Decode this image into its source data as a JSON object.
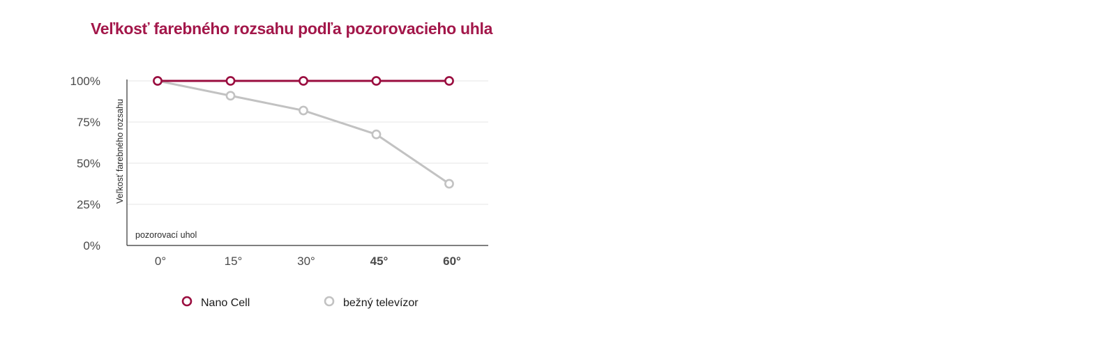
{
  "chart_data": {
    "type": "line",
    "title": "Veľkosť farebného rozsahu podľa pozorovacieho uhla",
    "ylabel": "Veľkosť farebného rozsahu",
    "xlabel": "pozorovací uhol",
    "categories": [
      "0°",
      "15°",
      "30°",
      "45°",
      "60°"
    ],
    "highlighted_categories": [
      "45°",
      "60°"
    ],
    "ylim": [
      0,
      100
    ],
    "yticks": [
      0,
      25,
      50,
      75,
      100
    ],
    "ytick_labels": [
      "0%",
      "25%",
      "50%",
      "75%",
      "100%"
    ],
    "grid": true,
    "legend_position": "bottom",
    "series": [
      {
        "name": "Nano Cell",
        "color": "#9a0d3f",
        "values": [
          100,
          100,
          100,
          100,
          100
        ]
      },
      {
        "name": "bežný televízor",
        "color": "#c2c2c2",
        "values": [
          100,
          91,
          82,
          67.5,
          37.5
        ]
      }
    ]
  },
  "colors": {
    "accent": "#a3174a",
    "highlight_tick": "#8e0c3a",
    "axis": "#333333",
    "grid": "#e4e4e4"
  }
}
